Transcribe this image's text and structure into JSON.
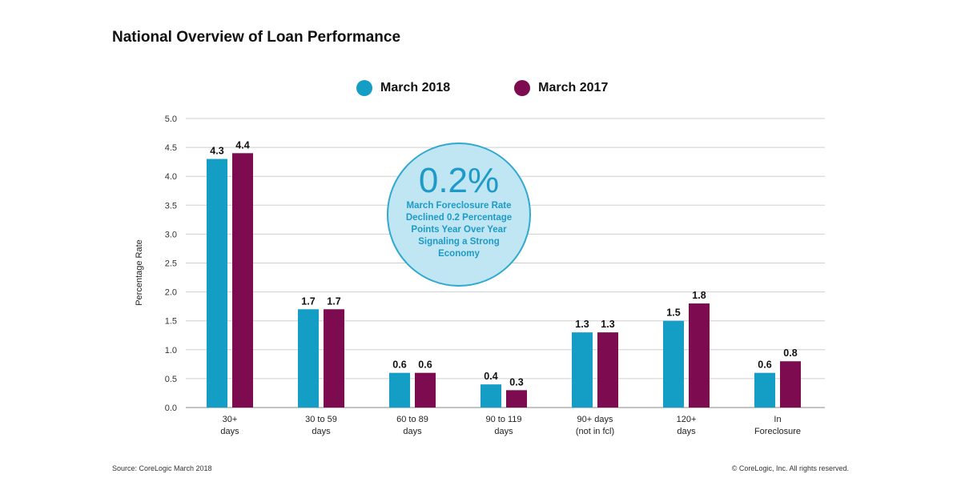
{
  "chart_data": {
    "type": "bar",
    "title": "National Overview of Loan Performance",
    "ylabel": "Percentage Rate",
    "ylim": [
      0,
      5
    ],
    "yticks": [
      "0.0",
      "0.5",
      "1.0",
      "1.5",
      "2.0",
      "2.5",
      "3.0",
      "3.5",
      "4.0",
      "4.5",
      "5.0"
    ],
    "grid": true,
    "legend_position": "top-center",
    "categories": [
      [
        "30+",
        "days"
      ],
      [
        "30 to 59",
        "days"
      ],
      [
        "60 to 89",
        "days"
      ],
      [
        "90 to 119",
        "days"
      ],
      [
        "90+ days",
        "(not in fcl)"
      ],
      [
        "120+",
        "days"
      ],
      [
        "In",
        "Foreclosure"
      ]
    ],
    "series": [
      {
        "name": "March 2018",
        "color": "#149ec6",
        "values": [
          4.3,
          1.7,
          0.6,
          0.4,
          1.3,
          1.5,
          0.6
        ],
        "labels": [
          "4.3",
          "1.7",
          "0.6",
          "0.4",
          "1.3",
          "1.5",
          "0.6"
        ]
      },
      {
        "name": "March 2017",
        "color": "#7d0b50",
        "values": [
          4.4,
          1.7,
          0.6,
          0.3,
          1.3,
          1.8,
          0.8
        ],
        "labels": [
          "4.4",
          "1.7",
          "0.6",
          "0.3",
          "1.3",
          "1.8",
          "0.8"
        ]
      }
    ],
    "annotation": {
      "big": "0.2%",
      "text": "March Foreclosure Rate Declined 0.2 Percentage Points Year Over Year Signaling a Strong Economy"
    }
  },
  "footer": {
    "source": "Source: CoreLogic March 2018",
    "copyright": "© CoreLogic, Inc. All rights reserved."
  }
}
